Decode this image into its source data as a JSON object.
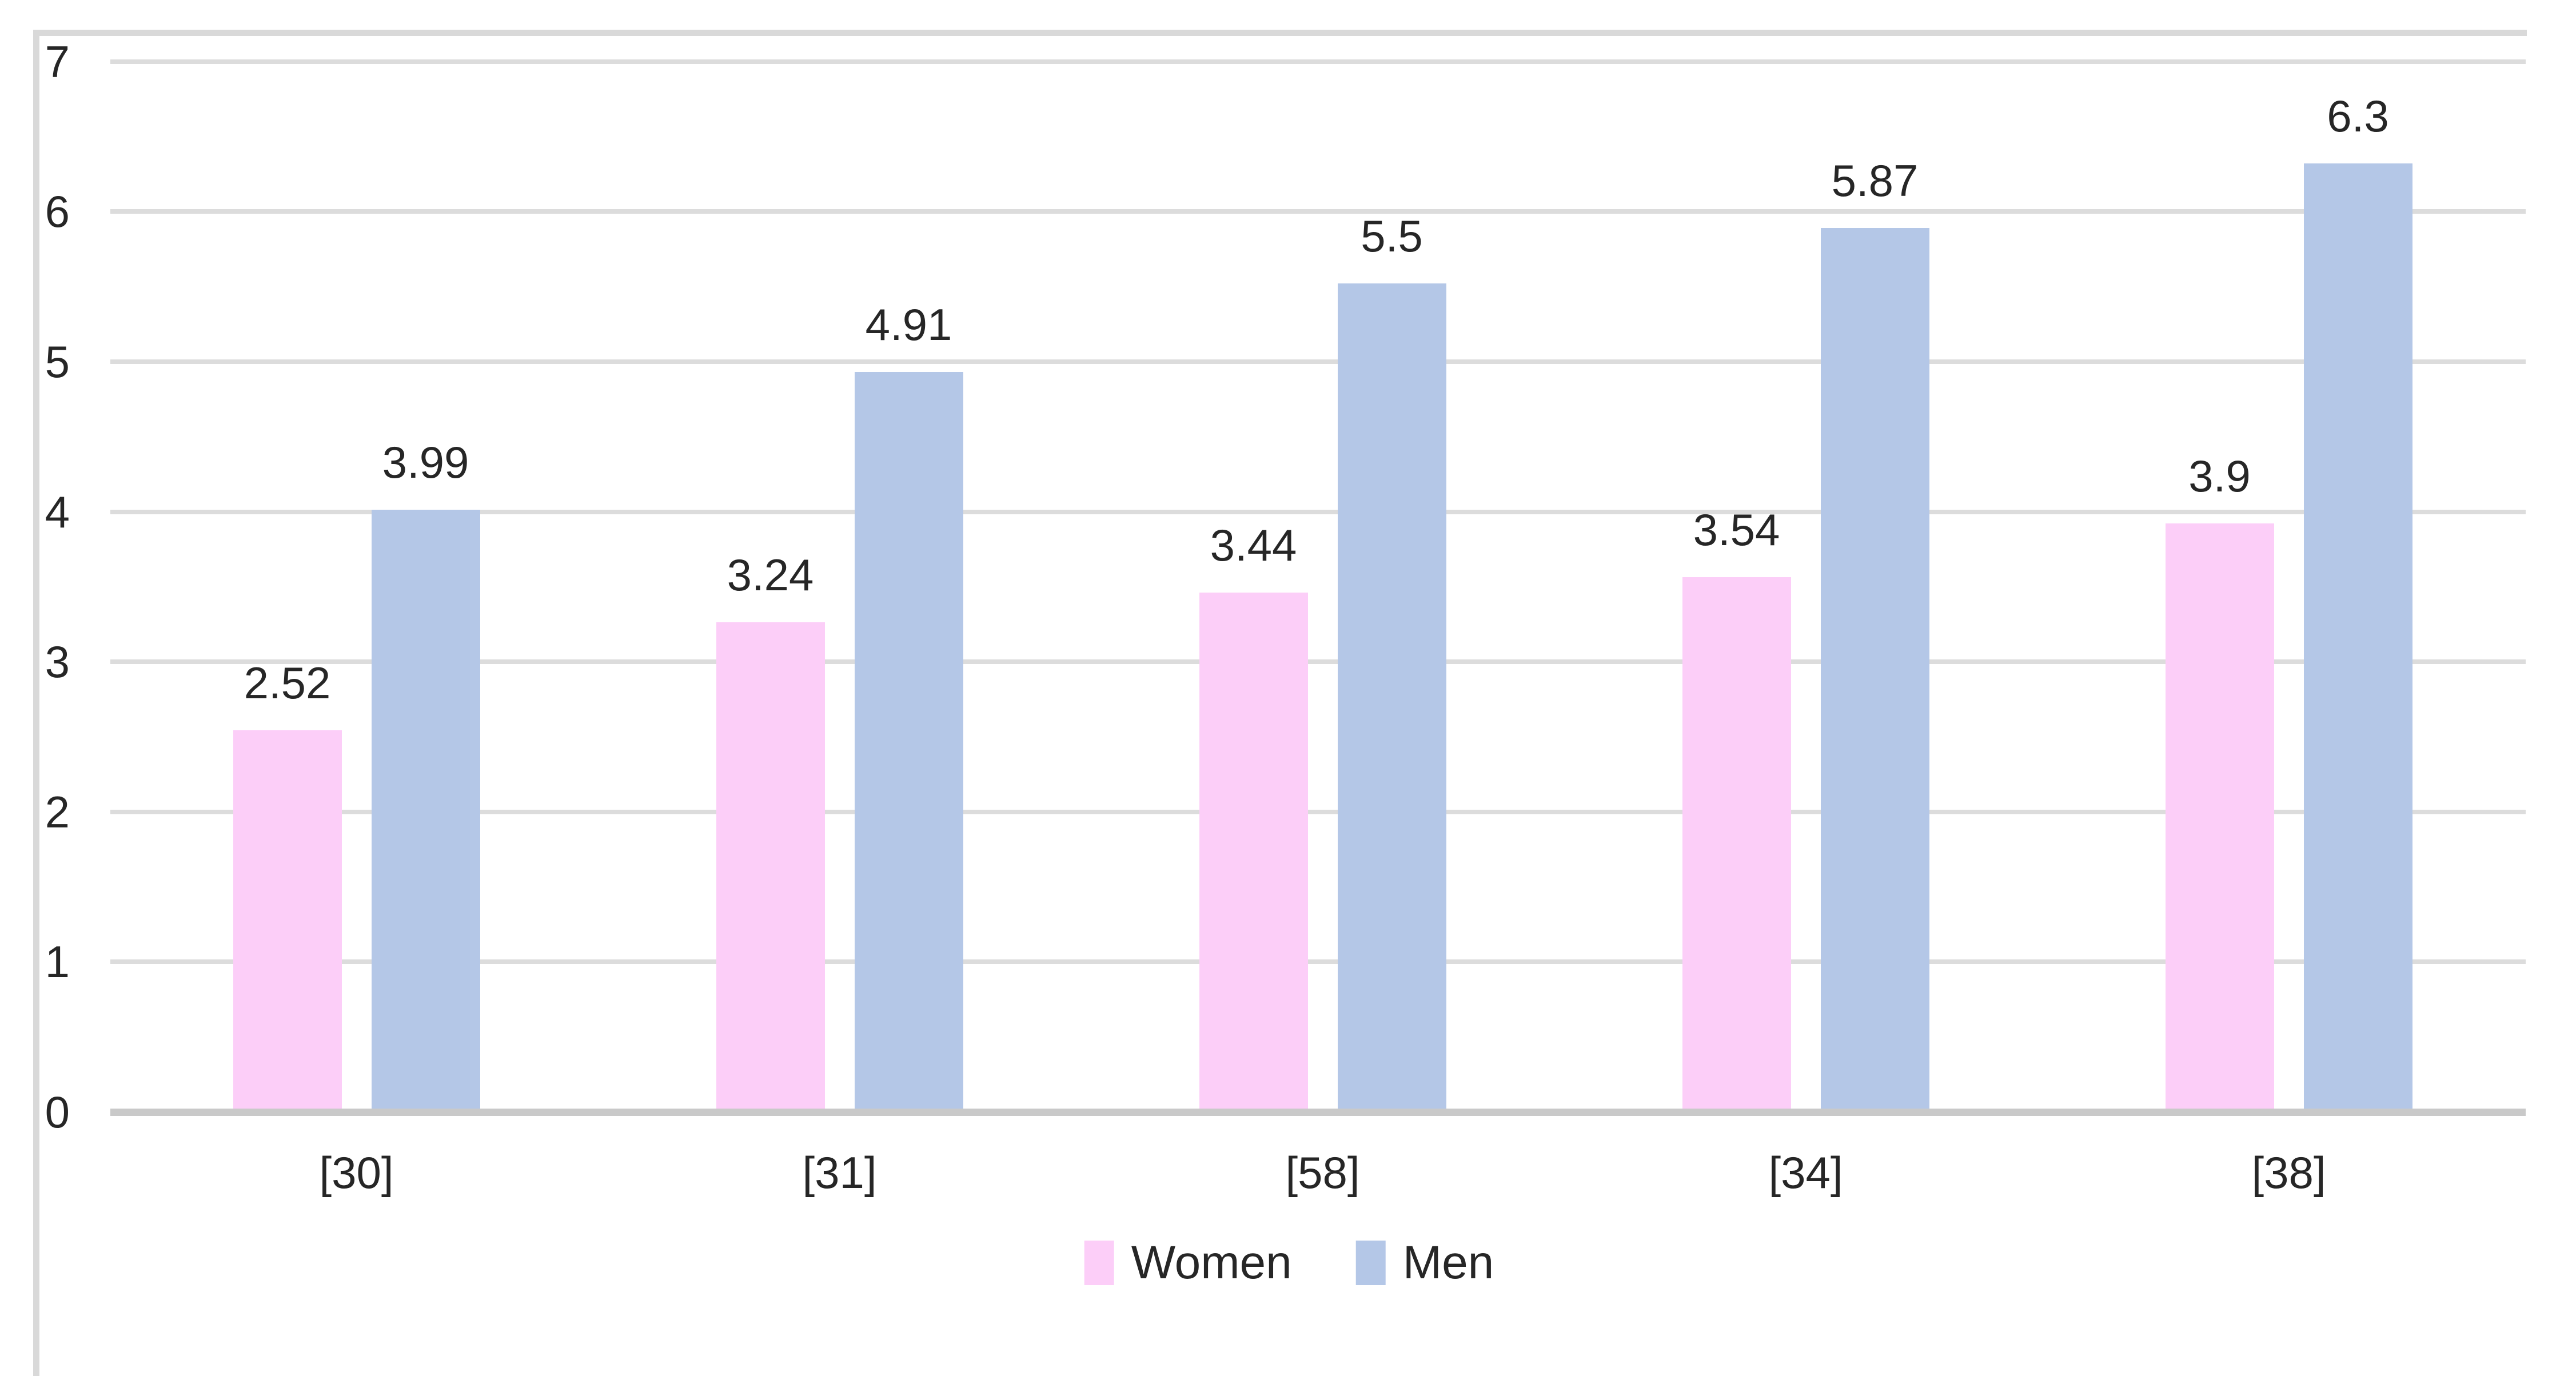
{
  "chart_data": {
    "type": "bar",
    "title": "",
    "xlabel": "",
    "ylabel": "",
    "categories": [
      "[30]",
      "[31]",
      "[58]",
      "[34]",
      "[38]"
    ],
    "series": [
      {
        "name": "Women",
        "color": "#FCCEF8",
        "values": [
          2.52,
          3.24,
          3.44,
          3.54,
          3.9
        ]
      },
      {
        "name": "Men",
        "color": "#B4C7E7",
        "values": [
          3.99,
          4.91,
          5.5,
          5.87,
          6.3
        ]
      }
    ],
    "data_labels_shown": true,
    "ylim": [
      0,
      7
    ],
    "yticks": [
      0,
      1,
      2,
      3,
      4,
      5,
      6,
      7
    ],
    "grid": true,
    "legend_position": "bottom-center"
  },
  "colors": {
    "background": "#FFFFFF",
    "gridline": "#DCDCDC",
    "axis_line": "#C9C9C9",
    "chart_border": "#D9D9D9",
    "text": "#262626"
  }
}
